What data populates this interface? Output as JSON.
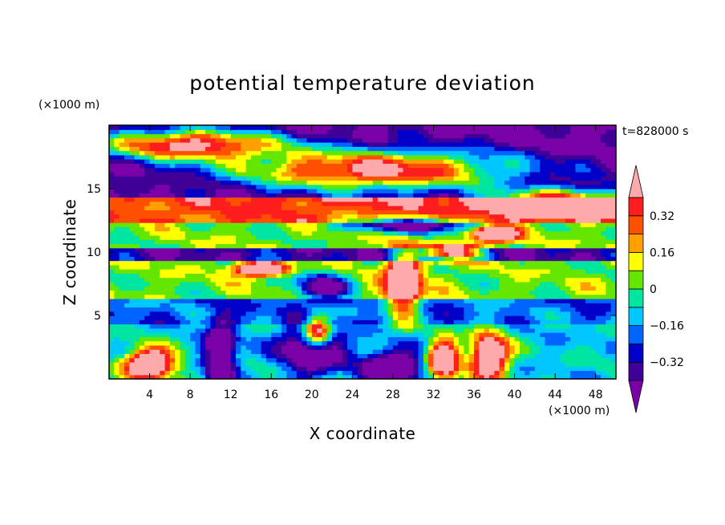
{
  "chart_data": {
    "type": "heatmap",
    "title": "potential temperature deviation",
    "time_label": "t=828000 s",
    "xlabel": "X coordinate",
    "ylabel": "Z coordinate",
    "x_unit": "(×1000 m)",
    "y_unit": "(×1000 m)",
    "xlim": [
      0,
      50
    ],
    "ylim": [
      0,
      20
    ],
    "x_ticks": [
      4,
      8,
      12,
      16,
      20,
      24,
      28,
      32,
      36,
      40,
      44,
      48
    ],
    "y_ticks": [
      5,
      10,
      15
    ],
    "colorbar": {
      "levels": [
        -0.4,
        -0.32,
        -0.24,
        -0.16,
        -0.08,
        0,
        0.08,
        0.16,
        0.24,
        0.32,
        0.4
      ],
      "tick_labels": [
        "0.32",
        "0.16",
        "0",
        "−0.16",
        "−0.32"
      ],
      "tick_values": [
        0.32,
        0.16,
        0,
        -0.16,
        -0.32
      ],
      "colors": [
        "#7a00a8",
        "#3e0096",
        "#0000c8",
        "#0064ff",
        "#00c8ff",
        "#00e6a0",
        "#64e600",
        "#ffff00",
        "#ffa000",
        "#ff5000",
        "#ff1e1e",
        "#ffaaaa"
      ],
      "extend": "both"
    },
    "bands": [
      {
        "z_from": 0,
        "z_to": 4.5,
        "value": -0.1
      },
      {
        "z_from": 4.5,
        "z_to": 6.5,
        "value": -0.2
      },
      {
        "z_from": 6.5,
        "z_to": 9.5,
        "value": 0.04
      },
      {
        "z_from": 9.5,
        "z_to": 10.2,
        "value": -0.35
      },
      {
        "z_from": 10.2,
        "z_to": 12.5,
        "value": 0.04
      },
      {
        "z_from": 12.5,
        "z_to": 14.5,
        "value": 0.3
      },
      {
        "z_from": 14.5,
        "z_to": 20,
        "value": -0.45
      }
    ],
    "features": [
      {
        "kind": "warm",
        "x": 26,
        "z": 16.5,
        "dx": 14,
        "dz": 1.6
      },
      {
        "kind": "warm",
        "x": 8,
        "z": 18.5,
        "dx": 9,
        "dz": 1.2
      },
      {
        "kind": "warm",
        "x": 45,
        "z": 14,
        "dx": 7,
        "dz": 1.0
      },
      {
        "kind": "warm",
        "x": 38,
        "z": 11.5,
        "dx": 2.2,
        "dz": 0.6
      },
      {
        "kind": "warm",
        "x": 34,
        "z": 10,
        "dx": 2.6,
        "dz": 0.6
      },
      {
        "kind": "warm",
        "x": 15,
        "z": 8.7,
        "dx": 2.4,
        "dz": 0.5
      },
      {
        "kind": "warm",
        "x": 29,
        "z": 7.5,
        "dx": 1.6,
        "dz": 2.4
      },
      {
        "kind": "warm",
        "x": 37.5,
        "z": 1.8,
        "dx": 1.8,
        "dz": 1.8
      },
      {
        "kind": "warm",
        "x": 20.5,
        "z": 3.8,
        "dx": 1.4,
        "dz": 1.3
      },
      {
        "kind": "warm",
        "x": 4,
        "z": 1.2,
        "dx": 2.5,
        "dz": 1.2
      },
      {
        "kind": "warm",
        "x": 33,
        "z": 1.5,
        "dx": 1.5,
        "dz": 1.5
      },
      {
        "kind": "cold",
        "x": 20,
        "z": 2.5,
        "dx": 3.0,
        "dz": 2.0
      },
      {
        "kind": "cold",
        "x": 11,
        "z": 2.0,
        "dx": 1.5,
        "dz": 2.5
      },
      {
        "kind": "cold",
        "x": 28,
        "z": 1.0,
        "dx": 3.0,
        "dz": 1.3
      },
      {
        "kind": "cold",
        "x": 30,
        "z": 12.2,
        "dx": 6,
        "dz": 0.6
      },
      {
        "kind": "cold",
        "x": 21,
        "z": 7.3,
        "dx": 2.5,
        "dz": 1.0
      }
    ]
  }
}
